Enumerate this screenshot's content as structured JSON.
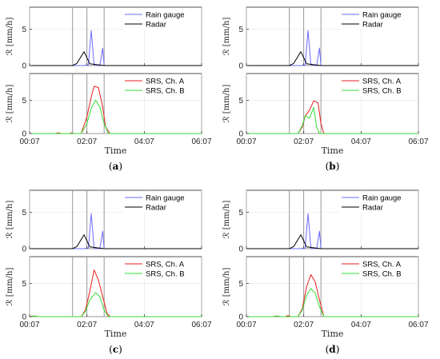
{
  "chart_data": [
    {
      "id": "a",
      "type": "line",
      "panel_label": "(a)",
      "panel_letter": "a",
      "xlabel": "Time",
      "ylabel": "ℛ [mm/h]",
      "x_ticks": [
        "00:07",
        "02:07",
        "04:07",
        "06:07"
      ],
      "x_range_hours": [
        0,
        6
      ],
      "marker_lines_hours": [
        1.5,
        2.0,
        2.6
      ],
      "top": {
        "ylim": [
          0,
          8
        ],
        "yticks": [
          0,
          5
        ],
        "legend": "top-right",
        "series": [
          {
            "name": "Rain gauge",
            "color": "#6b6bff",
            "points": [
              [
                0,
                0
              ],
              [
                1.5,
                0
              ],
              [
                1.9,
                0
              ],
              [
                2.05,
                0.1
              ],
              [
                2.15,
                4.8
              ],
              [
                2.25,
                0.1
              ],
              [
                2.45,
                0
              ],
              [
                2.55,
                2.4
              ],
              [
                2.6,
                0
              ],
              [
                6,
                0
              ]
            ]
          },
          {
            "name": "Radar",
            "color": "#000000",
            "points": [
              [
                0,
                0
              ],
              [
                1.5,
                0
              ],
              [
                1.65,
                0.3
              ],
              [
                1.9,
                1.9
              ],
              [
                2.1,
                0.25
              ],
              [
                2.4,
                0.1
              ],
              [
                2.6,
                0
              ],
              [
                6,
                0
              ]
            ]
          }
        ]
      },
      "bottom": {
        "ylim": [
          0,
          9
        ],
        "yticks": [
          0,
          5
        ],
        "legend": "top-right",
        "series": [
          {
            "name": "SRS, Ch. A",
            "color": "#e81c1c",
            "points": [
              [
                0,
                0
              ],
              [
                0.9,
                0
              ],
              [
                1.0,
                0.1
              ],
              [
                1.1,
                0
              ],
              [
                1.4,
                0
              ],
              [
                1.45,
                0.1
              ],
              [
                1.55,
                0
              ],
              [
                1.8,
                0
              ],
              [
                2.0,
                2.5
              ],
              [
                2.15,
                5.5
              ],
              [
                2.25,
                7.1
              ],
              [
                2.4,
                6.9
              ],
              [
                2.55,
                4.0
              ],
              [
                2.65,
                1.0
              ],
              [
                2.8,
                0
              ],
              [
                6,
                0
              ]
            ]
          },
          {
            "name": "SRS, Ch. B",
            "color": "#33dd33",
            "points": [
              [
                0,
                0
              ],
              [
                1.8,
                0
              ],
              [
                2.0,
                1.5
              ],
              [
                2.15,
                3.8
              ],
              [
                2.3,
                5.0
              ],
              [
                2.45,
                4.0
              ],
              [
                2.6,
                1.5
              ],
              [
                2.75,
                0
              ],
              [
                6,
                0
              ]
            ]
          }
        ]
      }
    },
    {
      "id": "b",
      "type": "line",
      "panel_label": "(b)",
      "panel_letter": "b",
      "xlabel": "Time",
      "ylabel": "ℛ [mm/h]",
      "x_ticks": [
        "00:07",
        "02:07",
        "04:07",
        "06:07"
      ],
      "x_range_hours": [
        0,
        6
      ],
      "marker_lines_hours": [
        1.5,
        2.0,
        2.6
      ],
      "top": {
        "ylim": [
          0,
          8
        ],
        "yticks": [
          0,
          5
        ],
        "legend": "top-right",
        "series": [
          {
            "name": "Rain gauge",
            "color": "#6b6bff",
            "points": [
              [
                0,
                0
              ],
              [
                1.5,
                0
              ],
              [
                1.9,
                0
              ],
              [
                2.05,
                0.1
              ],
              [
                2.15,
                4.8
              ],
              [
                2.25,
                0.1
              ],
              [
                2.45,
                0
              ],
              [
                2.55,
                2.4
              ],
              [
                2.6,
                0
              ],
              [
                6,
                0
              ]
            ]
          },
          {
            "name": "Radar",
            "color": "#000000",
            "points": [
              [
                0,
                0
              ],
              [
                1.5,
                0
              ],
              [
                1.65,
                0.3
              ],
              [
                1.9,
                1.9
              ],
              [
                2.1,
                0.25
              ],
              [
                2.4,
                0.1
              ],
              [
                2.6,
                0
              ],
              [
                6,
                0
              ]
            ]
          }
        ]
      },
      "bottom": {
        "ylim": [
          0,
          9
        ],
        "yticks": [
          0,
          5
        ],
        "legend": "top-right",
        "series": [
          {
            "name": "SRS, Ch. A",
            "color": "#e81c1c",
            "points": [
              [
                0,
                0
              ],
              [
                1.8,
                0
              ],
              [
                1.95,
                1.0
              ],
              [
                2.05,
                2.6
              ],
              [
                2.2,
                3.5
              ],
              [
                2.35,
                4.9
              ],
              [
                2.5,
                4.6
              ],
              [
                2.6,
                1.5
              ],
              [
                2.7,
                0
              ],
              [
                6,
                0
              ]
            ]
          },
          {
            "name": "SRS, Ch. B",
            "color": "#33dd33",
            "points": [
              [
                0,
                0
              ],
              [
                1.8,
                0
              ],
              [
                1.95,
                1.2
              ],
              [
                2.05,
                2.7
              ],
              [
                2.2,
                2.3
              ],
              [
                2.35,
                3.9
              ],
              [
                2.45,
                1.0
              ],
              [
                2.55,
                0
              ],
              [
                6,
                0
              ]
            ]
          }
        ]
      }
    },
    {
      "id": "c",
      "type": "line",
      "panel_label": "(c)",
      "panel_letter": "c",
      "xlabel": "Time",
      "ylabel": "ℛ [mm/h]",
      "x_ticks": [
        "00:07",
        "02:07",
        "04:07",
        "06:07"
      ],
      "x_range_hours": [
        0,
        6
      ],
      "marker_lines_hours": [
        1.5,
        2.0,
        2.6
      ],
      "top": {
        "ylim": [
          0,
          8
        ],
        "yticks": [
          0,
          5
        ],
        "legend": "top-right",
        "series": [
          {
            "name": "Rain gauge",
            "color": "#6b6bff",
            "points": [
              [
                0,
                0
              ],
              [
                1.5,
                0
              ],
              [
                1.9,
                0
              ],
              [
                2.05,
                0.1
              ],
              [
                2.15,
                4.8
              ],
              [
                2.25,
                0.1
              ],
              [
                2.45,
                0
              ],
              [
                2.55,
                2.4
              ],
              [
                2.6,
                0
              ],
              [
                6,
                0
              ]
            ]
          },
          {
            "name": "Radar",
            "color": "#000000",
            "points": [
              [
                0,
                0
              ],
              [
                1.5,
                0
              ],
              [
                1.65,
                0.3
              ],
              [
                1.9,
                1.9
              ],
              [
                2.1,
                0.25
              ],
              [
                2.4,
                0.1
              ],
              [
                2.6,
                0
              ],
              [
                6,
                0
              ]
            ]
          }
        ]
      },
      "bottom": {
        "ylim": [
          0,
          9
        ],
        "yticks": [
          0,
          5
        ],
        "legend": "top-right",
        "series": [
          {
            "name": "SRS, Ch. A",
            "color": "#e81c1c",
            "points": [
              [
                0,
                0
              ],
              [
                0.15,
                0.1
              ],
              [
                0.3,
                0
              ],
              [
                1.8,
                0
              ],
              [
                1.95,
                1.0
              ],
              [
                2.1,
                3.8
              ],
              [
                2.25,
                7.0
              ],
              [
                2.4,
                5.5
              ],
              [
                2.55,
                3.0
              ],
              [
                2.7,
                0.5
              ],
              [
                2.8,
                0
              ],
              [
                6,
                0
              ]
            ]
          },
          {
            "name": "SRS, Ch. B",
            "color": "#33dd33",
            "points": [
              [
                0,
                0
              ],
              [
                0.15,
                0.1
              ],
              [
                0.3,
                0
              ],
              [
                1.8,
                0
              ],
              [
                1.95,
                0.8
              ],
              [
                2.1,
                2.5
              ],
              [
                2.3,
                3.6
              ],
              [
                2.45,
                3.0
              ],
              [
                2.6,
                1.0
              ],
              [
                2.75,
                0
              ],
              [
                6,
                0
              ]
            ]
          }
        ]
      }
    },
    {
      "id": "d",
      "type": "line",
      "panel_label": "(d)",
      "panel_letter": "d",
      "xlabel": "Time",
      "ylabel": "ℛ [mm/h]",
      "x_ticks": [
        "00:07",
        "02:07",
        "04:07",
        "06:07"
      ],
      "x_range_hours": [
        0,
        6
      ],
      "marker_lines_hours": [
        1.5,
        2.0,
        2.6
      ],
      "top": {
        "ylim": [
          0,
          8
        ],
        "yticks": [
          0,
          5
        ],
        "legend": "top-right",
        "series": [
          {
            "name": "Rain gauge",
            "color": "#6b6bff",
            "points": [
              [
                0,
                0
              ],
              [
                1.5,
                0
              ],
              [
                1.9,
                0
              ],
              [
                2.05,
                0.1
              ],
              [
                2.15,
                4.8
              ],
              [
                2.25,
                0.1
              ],
              [
                2.45,
                0
              ],
              [
                2.55,
                2.4
              ],
              [
                2.6,
                0
              ],
              [
                6,
                0
              ]
            ]
          },
          {
            "name": "Radar",
            "color": "#000000",
            "points": [
              [
                0,
                0
              ],
              [
                1.5,
                0
              ],
              [
                1.65,
                0.3
              ],
              [
                1.9,
                1.9
              ],
              [
                2.1,
                0.25
              ],
              [
                2.4,
                0.1
              ],
              [
                2.6,
                0
              ],
              [
                6,
                0
              ]
            ]
          }
        ]
      },
      "bottom": {
        "ylim": [
          0,
          9
        ],
        "yticks": [
          0,
          5
        ],
        "legend": "top-right",
        "series": [
          {
            "name": "SRS, Ch. A",
            "color": "#e81c1c",
            "points": [
              [
                0,
                0
              ],
              [
                0.95,
                0
              ],
              [
                1.05,
                0.1
              ],
              [
                1.2,
                0
              ],
              [
                1.35,
                0
              ],
              [
                1.45,
                0.15
              ],
              [
                1.55,
                0
              ],
              [
                1.8,
                0
              ],
              [
                1.95,
                1.2
              ],
              [
                2.1,
                4.5
              ],
              [
                2.25,
                6.3
              ],
              [
                2.4,
                5.2
              ],
              [
                2.55,
                2.5
              ],
              [
                2.7,
                0
              ],
              [
                6,
                0
              ]
            ]
          },
          {
            "name": "SRS, Ch. B",
            "color": "#33dd33",
            "points": [
              [
                0,
                0
              ],
              [
                0.95,
                0
              ],
              [
                1.05,
                0.1
              ],
              [
                1.2,
                0
              ],
              [
                1.8,
                0
              ],
              [
                1.95,
                1.0
              ],
              [
                2.1,
                3.2
              ],
              [
                2.25,
                4.2
              ],
              [
                2.4,
                3.5
              ],
              [
                2.55,
                1.5
              ],
              [
                2.7,
                0
              ],
              [
                6,
                0
              ]
            ]
          }
        ]
      }
    }
  ]
}
